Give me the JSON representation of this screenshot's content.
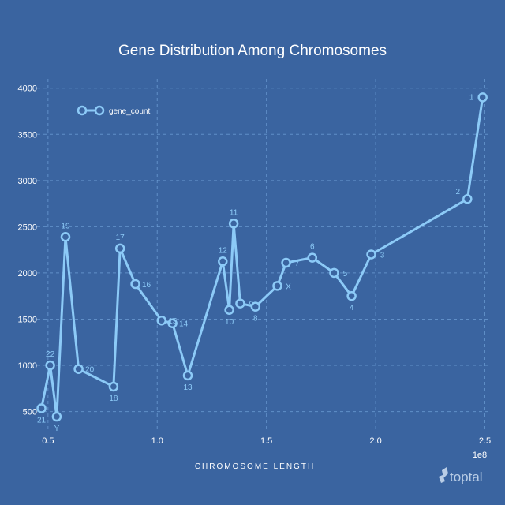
{
  "chart_data": {
    "type": "line",
    "title": "Gene Distribution Among Chromosomes",
    "xlabel": "CHROMOSOME LENGTH",
    "x_offset_label": "1e8",
    "legend": [
      "gene_count"
    ],
    "legend_position": "upper-left",
    "grid": true,
    "xlim": [
      0.45,
      2.52
    ],
    "ylim": [
      300,
      4100
    ],
    "xticks": [
      0.5,
      1.0,
      1.5,
      2.0,
      2.5
    ],
    "xtick_labels": [
      "0.5",
      "1.0",
      "1.5",
      "2.0",
      "2.5"
    ],
    "yticks": [
      500,
      1000,
      1500,
      2000,
      2500,
      3000,
      3500,
      4000
    ],
    "ytick_labels": [
      "500",
      "1000",
      "1500",
      "2000",
      "2500",
      "3000",
      "3500",
      "4000"
    ],
    "series": [
      {
        "name": "gene_count",
        "points": [
          {
            "label": "21",
            "x": 0.47,
            "y": 535
          },
          {
            "label": "22",
            "x": 0.51,
            "y": 1000
          },
          {
            "label": "Y",
            "x": 0.54,
            "y": 445
          },
          {
            "label": "19",
            "x": 0.58,
            "y": 2390
          },
          {
            "label": "20",
            "x": 0.64,
            "y": 960
          },
          {
            "label": "18",
            "x": 0.8,
            "y": 770
          },
          {
            "label": "17",
            "x": 0.83,
            "y": 2265
          },
          {
            "label": "16",
            "x": 0.9,
            "y": 1880
          },
          {
            "label": "15",
            "x": 1.02,
            "y": 1485
          },
          {
            "label": "14",
            "x": 1.07,
            "y": 1455
          },
          {
            "label": "13",
            "x": 1.14,
            "y": 890
          },
          {
            "label": "12",
            "x": 1.3,
            "y": 2125
          },
          {
            "label": "10",
            "x": 1.33,
            "y": 1600
          },
          {
            "label": "11",
            "x": 1.35,
            "y": 2535
          },
          {
            "label": "9",
            "x": 1.38,
            "y": 1670
          },
          {
            "label": "8",
            "x": 1.45,
            "y": 1635
          },
          {
            "label": "X",
            "x": 1.55,
            "y": 1860
          },
          {
            "label": "7",
            "x": 1.59,
            "y": 2110
          },
          {
            "label": "6",
            "x": 1.71,
            "y": 2165
          },
          {
            "label": "5",
            "x": 1.81,
            "y": 2000
          },
          {
            "label": "4",
            "x": 1.89,
            "y": 1750
          },
          {
            "label": "3",
            "x": 1.98,
            "y": 2200
          },
          {
            "label": "2",
            "x": 2.42,
            "y": 2800
          },
          {
            "label": "1",
            "x": 2.49,
            "y": 3900
          }
        ]
      }
    ]
  },
  "brand": {
    "name": "toptal"
  },
  "colors": {
    "background": "#3a64a0",
    "line": "#8ccaf7",
    "grid": "#7fb3ea",
    "text": "#ffffff"
  }
}
